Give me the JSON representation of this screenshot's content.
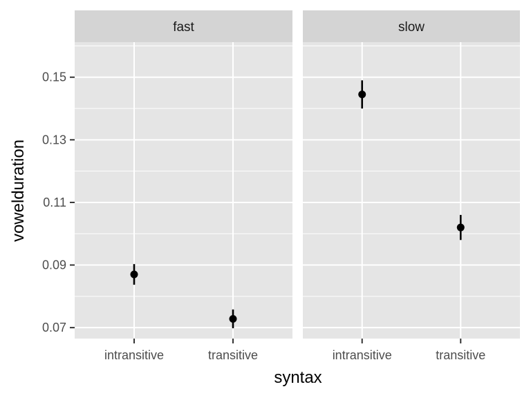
{
  "chart_data": {
    "type": "scatter",
    "subtype": "point-range faceted",
    "xlabel": "syntax",
    "ylabel": "vowelduration",
    "categories": [
      "intransitive",
      "transitive"
    ],
    "ylim": [
      0.0665,
      0.1612
    ],
    "yticks": [
      0.07,
      0.09,
      0.11,
      0.13,
      0.15
    ],
    "ytick_labels": [
      "0.07",
      "0.09",
      "0.11",
      "0.13",
      "0.15"
    ],
    "grid": true,
    "facets": [
      {
        "label": "fast",
        "points": [
          {
            "x": "intransitive",
            "y": 0.087,
            "ymin": 0.0837,
            "ymax": 0.0903
          },
          {
            "x": "transitive",
            "y": 0.0728,
            "ymin": 0.0698,
            "ymax": 0.0758
          }
        ]
      },
      {
        "label": "slow",
        "points": [
          {
            "x": "intransitive",
            "y": 0.1445,
            "ymin": 0.14,
            "ymax": 0.149
          },
          {
            "x": "transitive",
            "y": 0.102,
            "ymin": 0.098,
            "ymax": 0.106
          }
        ]
      }
    ],
    "colors": {
      "panel_background": "#e5e5e5",
      "strip_background": "#d4d4d4",
      "grid": "#ffffff",
      "point": "#000000",
      "tick_label": "#4d4d4d"
    }
  }
}
